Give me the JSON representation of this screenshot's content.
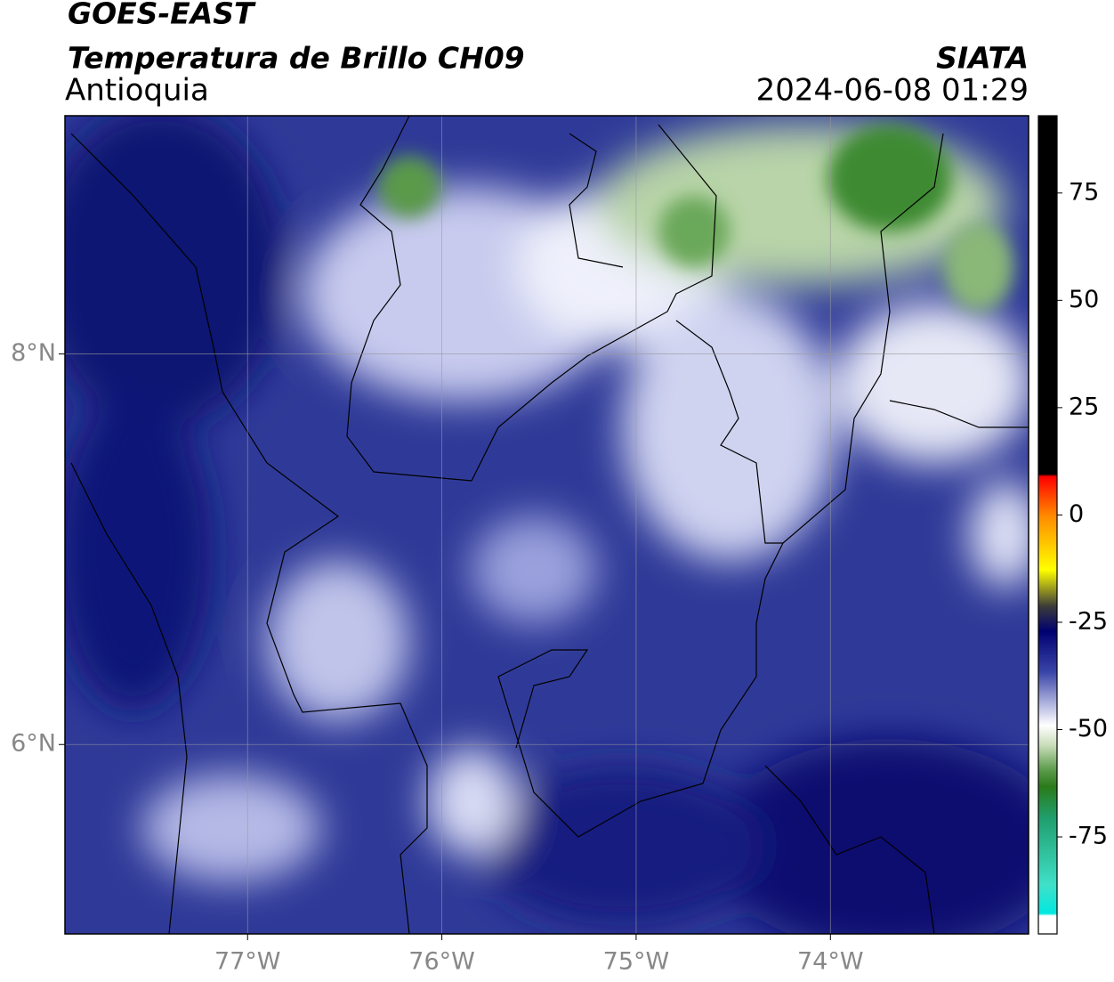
{
  "header": {
    "title": "GOES-EAST",
    "subtitle": "Temperatura de Brillo CH09",
    "region": "Antioquia",
    "source": "SIATA",
    "datetime": "2024-06-08 01:29"
  },
  "map": {
    "xlim": [
      -77.94,
      -72.98
    ],
    "ylim": [
      5.03,
      9.22
    ],
    "grid": true,
    "xticks": [
      {
        "value": -77,
        "label": "77°W"
      },
      {
        "value": -76,
        "label": "76°W"
      },
      {
        "value": -75,
        "label": "75°W"
      },
      {
        "value": -74,
        "label": "74°W"
      }
    ],
    "yticks": [
      {
        "value": 6,
        "label": "6°N"
      },
      {
        "value": 8,
        "label": "8°N"
      }
    ]
  },
  "colorbar": {
    "clim": [
      -97.6,
      93
    ],
    "ticks": [
      75,
      50,
      25,
      0,
      -25,
      -50,
      -75
    ]
  }
}
